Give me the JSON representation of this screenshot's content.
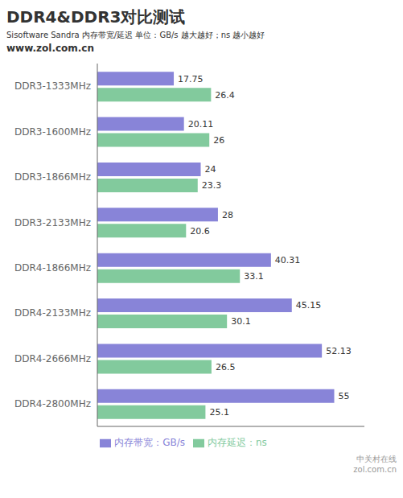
{
  "chart_data": {
    "type": "bar",
    "orientation": "horizontal",
    "title": "DDR4&DDR3对比测试",
    "subtitle": "Sisoftware Sandra 内存带宽/延迟   单位：GB/s 越大越好；ns 越小越好",
    "annotations": [
      "www.zol.com.cn",
      "中关村在线\nzol.com.cn"
    ],
    "categories": [
      "DDR3-1333MHz",
      "DDR3-1600MHz",
      "DDR3-1866MHz",
      "DDR3-2133MHz",
      "DDR4-1866MHz",
      "DDR4-2133MHz",
      "DDR4-2666MHz",
      "DDR4-2800MHz"
    ],
    "series": [
      {
        "name": "内存带宽：GB/s",
        "values": [
          17.75,
          20.11,
          24,
          28,
          40.31,
          45.15,
          52.13,
          55
        ]
      },
      {
        "name": "内存延迟：ns",
        "values": [
          26.4,
          26,
          23.3,
          20.6,
          33.1,
          30.1,
          26.5,
          25.1
        ]
      }
    ],
    "xlim": [
      0,
      62
    ],
    "grid": false,
    "legend": "bottom",
    "data_labels": true,
    "tick_labels": "y"
  }
}
